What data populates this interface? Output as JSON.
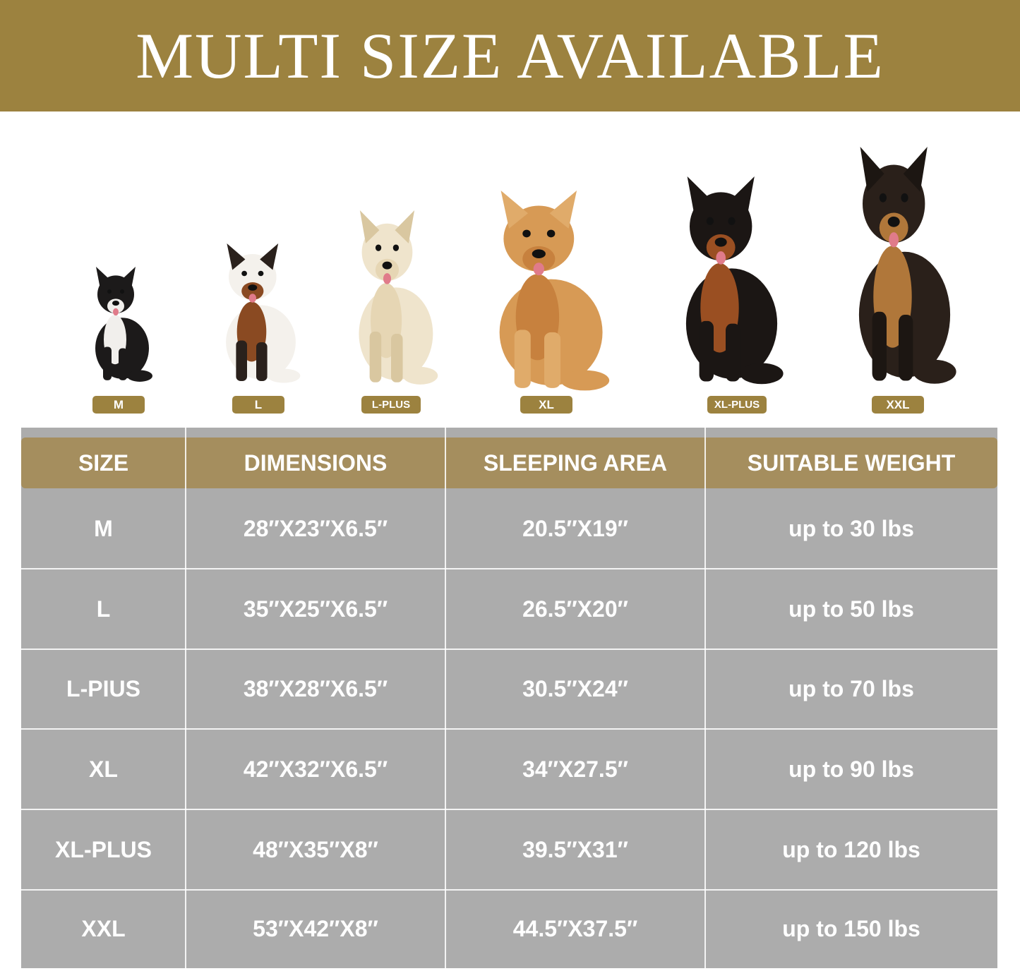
{
  "banner": {
    "title": "MULTI SIZE AVAILABLE"
  },
  "colors": {
    "brand_gold": "#9c823f",
    "header_gold": "#a58e5e",
    "cell_gray": "#acacac"
  },
  "dogs": [
    {
      "label": "M",
      "breed_icon": "french-bulldog"
    },
    {
      "label": "L",
      "breed_icon": "beagle"
    },
    {
      "label": "L-PLUS",
      "breed_icon": "labrador-cream"
    },
    {
      "label": "XL",
      "breed_icon": "golden-retriever"
    },
    {
      "label": "XL-PLUS",
      "breed_icon": "doberman"
    },
    {
      "label": "XXL",
      "breed_icon": "german-shepherd"
    }
  ],
  "table": {
    "headers": [
      "SIZE",
      "DIMENSIONS",
      "SLEEPING AREA",
      "SUITABLE WEIGHT"
    ],
    "rows": [
      [
        "M",
        "28″X23″X6.5″",
        "20.5″X19″",
        "up to 30 lbs"
      ],
      [
        "L",
        "35″X25″X6.5″",
        "26.5″X20″",
        "up to 50 lbs"
      ],
      [
        "L-PIUS",
        "38″X28″X6.5″",
        "30.5″X24″",
        "up to 70 lbs"
      ],
      [
        "XL",
        "42″X32″X6.5″",
        "34″X27.5″",
        "up to 90 lbs"
      ],
      [
        "XL-PLUS",
        "48″X35″X8″",
        "39.5″X31″",
        "up to 120 lbs"
      ],
      [
        "XXL",
        "53″X42″X8″",
        "44.5″X37.5″",
        "up to 150 lbs"
      ]
    ]
  }
}
